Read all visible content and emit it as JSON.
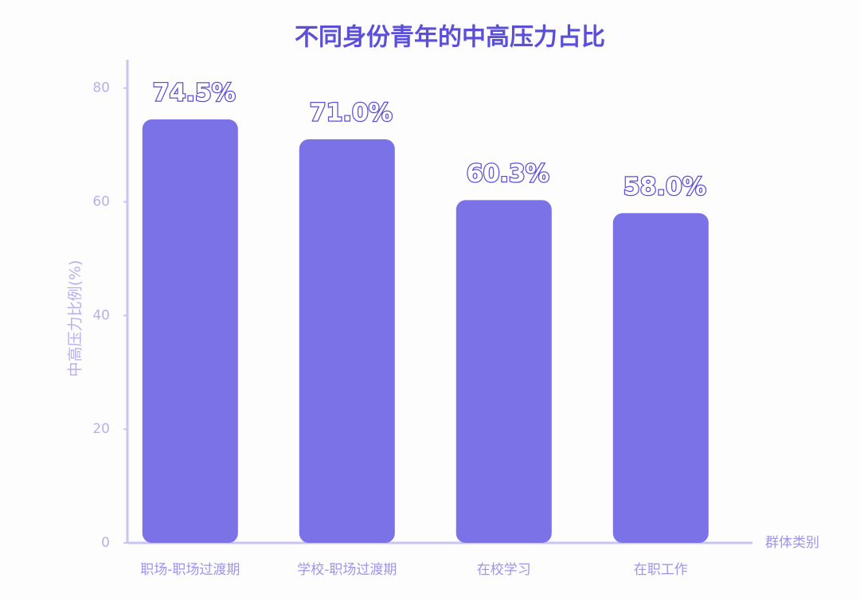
{
  "chart_data": {
    "type": "bar",
    "title": "不同身份青年的中高压力占比",
    "y_label": "中高压力比例(%)",
    "x_label": "群体类别",
    "categories": [
      "职场-职场过渡期",
      "学校-职场过渡期",
      "在校学习",
      "在职工作"
    ],
    "values": [
      74.5,
      71.0,
      60.3,
      58.0
    ],
    "value_labels": [
      "74.5%",
      "71.0%",
      "60.3%",
      "58.0%"
    ],
    "color": "#7b72e8",
    "ylim": [
      0,
      85
    ],
    "yticks": [
      0,
      20,
      40,
      60,
      80
    ],
    "grid": false
  }
}
